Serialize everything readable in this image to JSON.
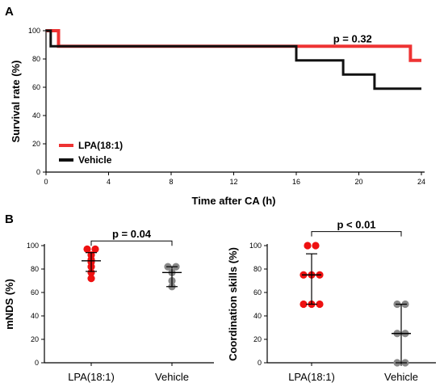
{
  "panels": {
    "a_letter": "A",
    "b_letter": "B"
  },
  "chart_data": [
    {
      "type": "line",
      "subtype": "step",
      "panel": "A",
      "xlabel": "Time after CA (h)",
      "ylabel": "Survival rate (%)",
      "xlim": [
        0,
        24
      ],
      "ylim": [
        0,
        100
      ],
      "xticks": [
        0,
        4,
        8,
        12,
        16,
        20,
        24
      ],
      "yticks": [
        0,
        20,
        40,
        60,
        80,
        100
      ],
      "grid": false,
      "legend": "bottom-left",
      "annotation": {
        "text": "p = 0.32",
        "x": 19.6,
        "y": 94
      },
      "series": [
        {
          "name": "LPA(18:1)",
          "color": "#ee3333",
          "width": 4,
          "x": [
            0,
            0.8,
            0.8,
            23.3,
            23.3,
            24
          ],
          "y": [
            100,
            100,
            89,
            89,
            79,
            79
          ]
        },
        {
          "name": "Vehicle",
          "color": "#111111",
          "width": 3,
          "x": [
            0,
            0.3,
            0.3,
            16,
            16,
            19,
            19,
            21,
            21,
            24
          ],
          "y": [
            100,
            100,
            89,
            89,
            79,
            79,
            69,
            69,
            59,
            59
          ]
        }
      ]
    },
    {
      "type": "scatter",
      "panel": "B-left",
      "ylabel": "mNDS (%)",
      "ylim": [
        0,
        100
      ],
      "yticks": [
        0,
        20,
        40,
        60,
        80,
        100
      ],
      "categories": [
        "LPA(18:1)",
        "Vehicle"
      ],
      "bracket": {
        "text": "p = 0.04",
        "y": 104
      },
      "groups": [
        {
          "category": "LPA(18:1)",
          "color": "#ee1111",
          "points": [
            97,
            97,
            92,
            88,
            86,
            82,
            77,
            72
          ],
          "mid": 87,
          "low": 78,
          "high": 94
        },
        {
          "category": "Vehicle",
          "color": "#888888",
          "points": [
            82,
            82,
            77,
            70,
            65
          ],
          "mid": 77,
          "low": 65,
          "high": 82
        }
      ]
    },
    {
      "type": "scatter",
      "panel": "B-right",
      "ylabel": "Coordination skills (%)",
      "ylim": [
        0,
        100
      ],
      "yticks": [
        0,
        20,
        40,
        60,
        80,
        100
      ],
      "categories": [
        "LPA(18:1)",
        "Vehicle"
      ],
      "bracket": {
        "text": "p < 0.01",
        "y": 112
      },
      "groups": [
        {
          "category": "LPA(18:1)",
          "color": "#ee1111",
          "points": [
            100,
            100,
            75,
            75,
            75,
            50,
            50,
            50
          ],
          "mid": 75,
          "low": 50,
          "high": 93
        },
        {
          "category": "Vehicle",
          "color": "#888888",
          "points": [
            50,
            50,
            25,
            25,
            0,
            0
          ],
          "mid": 25,
          "low": 0,
          "high": 50
        }
      ]
    }
  ]
}
